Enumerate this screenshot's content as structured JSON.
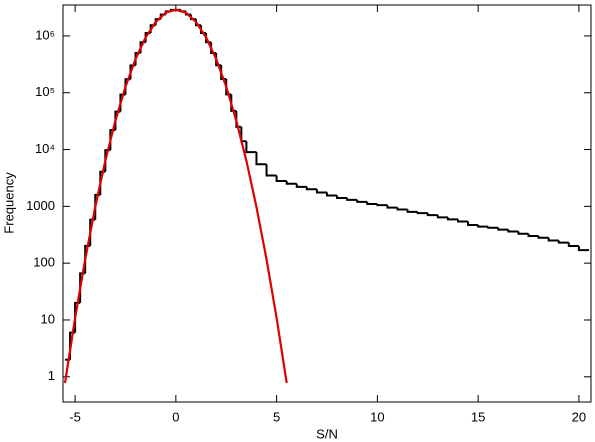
{
  "chart_data": {
    "type": "histogram",
    "xlabel": "S/N",
    "ylabel": "Frequency",
    "log_y": true,
    "color": "#000000",
    "bins": [
      -5.5,
      -5.25,
      -5,
      -4.75,
      -4.5,
      -4.25,
      -4,
      -3.75,
      -3.5,
      -3.25,
      -3,
      -2.75,
      -2.5,
      -2.25,
      -2,
      -1.75,
      -1.5,
      -1.25,
      -1,
      -0.75,
      -0.5,
      -0.25,
      0,
      0.25,
      0.5,
      0.75,
      1,
      1.25,
      1.5,
      1.75,
      2,
      2.25,
      2.5,
      2.75,
      3,
      3.25,
      3.5,
      4,
      4.5,
      5,
      5.5,
      6,
      6.5,
      7,
      7.5,
      8,
      8.5,
      9,
      9.5,
      10,
      10.5,
      11,
      11.5,
      12,
      12.5,
      13,
      13.5,
      14,
      14.5,
      15,
      15.5,
      16,
      16.5,
      17,
      17.5,
      18,
      18.5,
      19,
      19.5,
      20,
      20.5
    ],
    "values": [
      2,
      6,
      20,
      66,
      202,
      585,
      1592,
      4064,
      9750,
      21950,
      46490,
      92510,
      172900,
      303400,
      500000,
      774600,
      1127000,
      1540000,
      1978000,
      2386000,
      2703000,
      2877000,
      2877000,
      2703000,
      2386000,
      1978000,
      1540000,
      1127000,
      775000,
      501000,
      304000,
      174000,
      93500,
      48000,
      25000,
      14000,
      9000,
      5500,
      3500,
      2800,
      2500,
      2200,
      2000,
      1750,
      1550,
      1400,
      1300,
      1200,
      1100,
      1050,
      950,
      880,
      800,
      760,
      700,
      640,
      590,
      540,
      470,
      440,
      420,
      390,
      360,
      330,
      300,
      280,
      250,
      230,
      200,
      170
    ],
    "fit": {
      "color": "#e00000",
      "x": [
        -5.5,
        -5,
        -4.5,
        -4,
        -3.5,
        -3,
        -2.5,
        -2,
        -1.5,
        -1,
        -0.5,
        0,
        0.5,
        1,
        1.5,
        2,
        2.5,
        3,
        3.5,
        4,
        4.5,
        5,
        5.5
      ],
      "values": [
        0.78,
        10.8,
        116,
        973,
        6350,
        32220,
        127400,
        392500,
        941600,
        1759000,
        2559000,
        2900000,
        2559000,
        1759000,
        941600,
        392500,
        127400,
        32220,
        6350,
        973,
        116,
        10.8,
        0.78
      ]
    },
    "xlim": [
      -5.6,
      20.6
    ],
    "ylim": [
      0.36,
      3500000
    ],
    "xticks": [
      -5,
      0,
      5,
      10,
      15,
      20
    ],
    "yticks": [
      1,
      10,
      100,
      1000,
      {
        "value": 10000,
        "label": "10⁴"
      },
      {
        "value": 100000,
        "label": "10⁵"
      },
      {
        "value": 1000000,
        "label": "10⁶"
      }
    ]
  }
}
